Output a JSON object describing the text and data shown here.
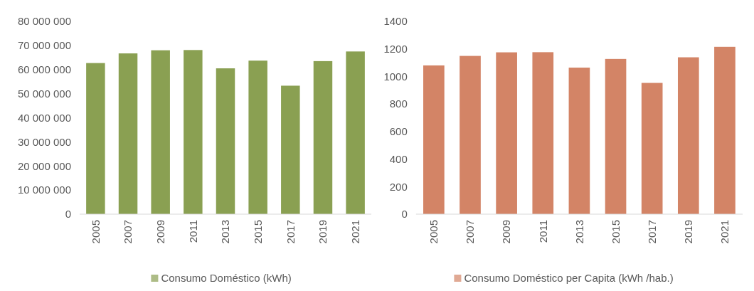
{
  "chart_data": [
    {
      "type": "bar",
      "categories": [
        "2005",
        "2007",
        "2009",
        "2011",
        "2013",
        "2015",
        "2017",
        "2019",
        "2021"
      ],
      "series": [
        {
          "name": "Consumo Doméstico (kWh)",
          "color": "#8aa052",
          "values": [
            62700000,
            66700000,
            68000000,
            68100000,
            60500000,
            63700000,
            53300000,
            63500000,
            67500000
          ]
        }
      ],
      "ylim": [
        0,
        80000000
      ],
      "yticks": [
        {
          "value": 0,
          "label": "0"
        },
        {
          "value": 10000000,
          "label": "10 000 000"
        },
        {
          "value": 20000000,
          "label": "20 000 000"
        },
        {
          "value": 30000000,
          "label": "30 000 000"
        },
        {
          "value": 40000000,
          "label": "40 000 000"
        },
        {
          "value": 50000000,
          "label": "50 000 000"
        },
        {
          "value": 60000000,
          "label": "60 000 000"
        },
        {
          "value": 70000000,
          "label": "70 000 000"
        },
        {
          "value": 80000000,
          "label": "80 000 000"
        }
      ],
      "legend": "bottom"
    },
    {
      "type": "bar",
      "categories": [
        "2005",
        "2007",
        "2009",
        "2011",
        "2013",
        "2015",
        "2017",
        "2019",
        "2021"
      ],
      "series": [
        {
          "name": "Consumo Doméstico per Capita (kWh /hab.)",
          "color": "#d38466",
          "values": [
            1080,
            1149,
            1175,
            1176,
            1064,
            1127,
            953,
            1139,
            1215
          ]
        }
      ],
      "ylim": [
        0,
        1400
      ],
      "yticks": [
        0,
        200,
        400,
        600,
        800,
        1000,
        1200,
        1400
      ],
      "legend": "bottom"
    }
  ]
}
